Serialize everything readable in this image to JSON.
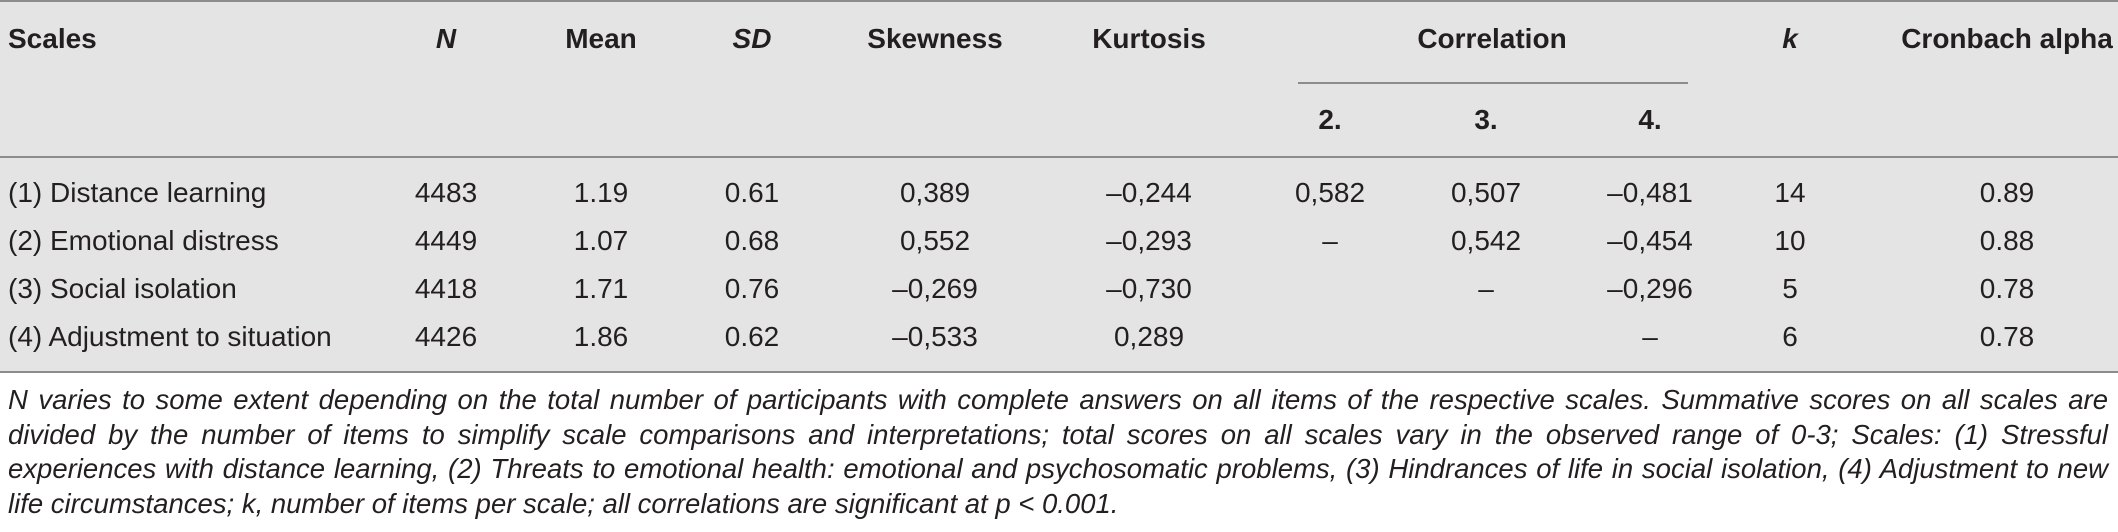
{
  "headers": {
    "scales": "Scales",
    "n": "N",
    "mean": "Mean",
    "sd": "SD",
    "skewness": "Skewness",
    "kurtosis": "Kurtosis",
    "correlation": "Correlation",
    "corr_2": "2.",
    "corr_3": "3.",
    "corr_4": "4.",
    "k": "k",
    "alpha": "Cronbach alpha"
  },
  "rows": [
    {
      "scale": "(1) Distance learning",
      "n": "4483",
      "mean": "1.19",
      "sd": "0.61",
      "skewness": "0,389",
      "kurtosis": "–0,244",
      "c2": "0,582",
      "c3": "0,507",
      "c4": "–0,481",
      "k": "14",
      "alpha": "0.89"
    },
    {
      "scale": "(2) Emotional distress",
      "n": "4449",
      "mean": "1.07",
      "sd": "0.68",
      "skewness": "0,552",
      "kurtosis": "–0,293",
      "c2": "–",
      "c3": "0,542",
      "c4": "–0,454",
      "k": "10",
      "alpha": "0.88"
    },
    {
      "scale": "(3) Social isolation",
      "n": "4418",
      "mean": "1.71",
      "sd": "0.76",
      "skewness": "–0,269",
      "kurtosis": "–0,730",
      "c2": "",
      "c3": "–",
      "c4": "–0,296",
      "k": "5",
      "alpha": "0.78"
    },
    {
      "scale": "(4) Adjustment to situation",
      "n": "4426",
      "mean": "1.86",
      "sd": "0.62",
      "skewness": "–0,533",
      "kurtosis": "0,289",
      "c2": "",
      "c3": "",
      "c4": "–",
      "k": "6",
      "alpha": "0.78"
    }
  ],
  "footnote": "N varies to some extent depending on the total number of participants with complete answers on all items of the respective scales. Summative scores on all scales are divided by the number of items to simplify scale comparisons and interpretations; total scores on all scales vary in the observed range of 0-3; Scales: (1) Stressful experiences with distance learning, (2) Threats to emotional health: emotional and psychosomatic problems, (3) Hindrances of life in social isolation, (4) Adjustment to new life circumstances; k, number of items per scale; all correlations are significant at p < 0.001."
}
